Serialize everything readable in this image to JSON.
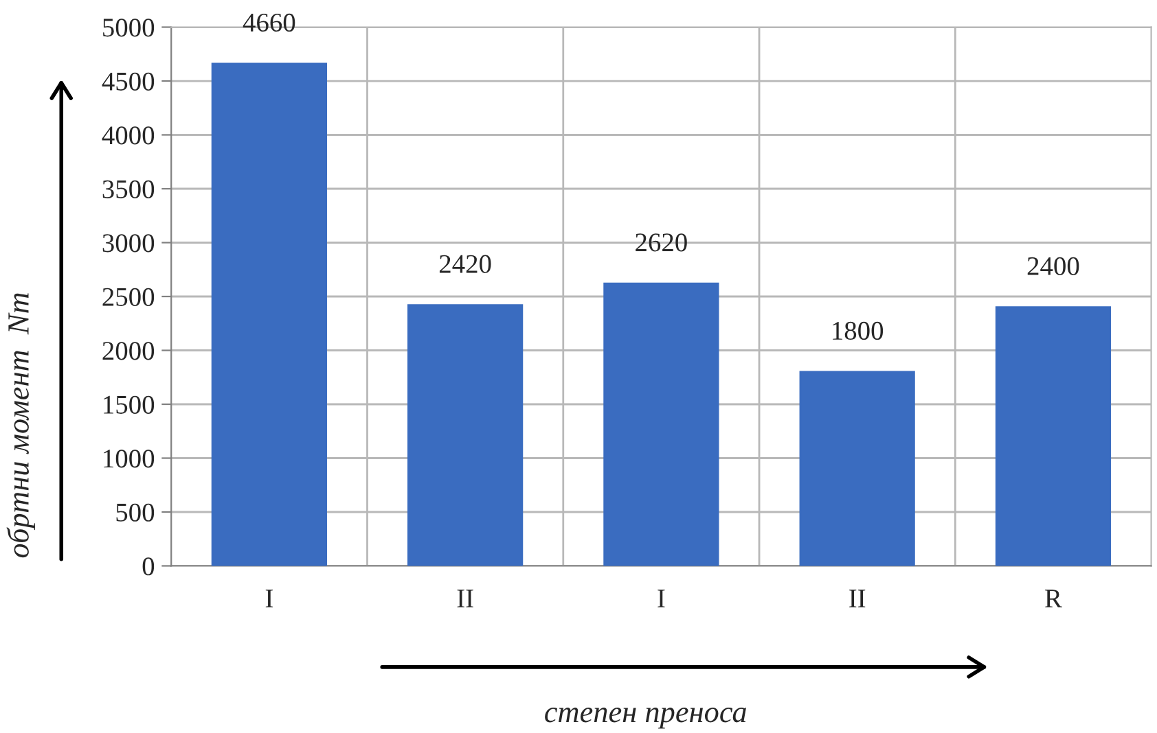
{
  "chart_data": {
    "type": "bar",
    "xlabel": "степен преноса",
    "ylabel": "обртни момент  Nm",
    "categories": [
      "I",
      "II",
      "I",
      "II",
      "R"
    ],
    "values": [
      4660,
      2420,
      2620,
      1800,
      2400
    ],
    "color": "#3a6cc0",
    "ylim": [
      0,
      5000
    ],
    "yticks": [
      0,
      500,
      1000,
      1500,
      2000,
      2500,
      3000,
      3500,
      4000,
      4500,
      5000
    ],
    "grid": true,
    "data_labels": true
  }
}
